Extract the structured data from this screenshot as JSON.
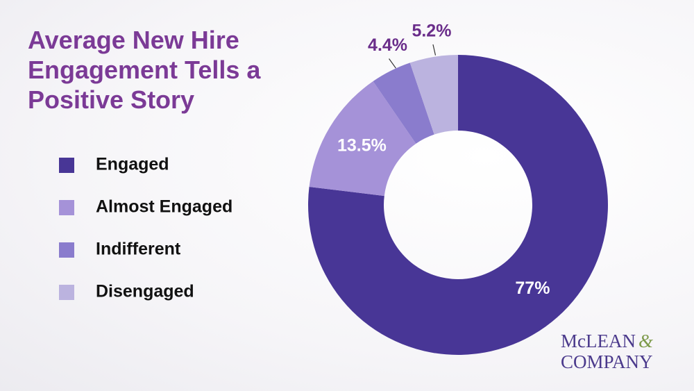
{
  "chart_data": {
    "type": "donut",
    "title": "Average New Hire Engagement Tells a Positive Story",
    "categories": [
      "Engaged",
      "Almost Engaged",
      "Indifferent",
      "Disengaged"
    ],
    "values": [
      77,
      13.5,
      4.4,
      5.2
    ],
    "value_labels": [
      "77%",
      "13.5%",
      "4.4%",
      "5.2%"
    ],
    "colors": [
      "#483696",
      "#a592d8",
      "#8a7ccd",
      "#bbb3df"
    ],
    "legend": "left"
  },
  "logo": {
    "line1": "McLEAN",
    "ampersand": "&",
    "line2": "COMPANY"
  }
}
